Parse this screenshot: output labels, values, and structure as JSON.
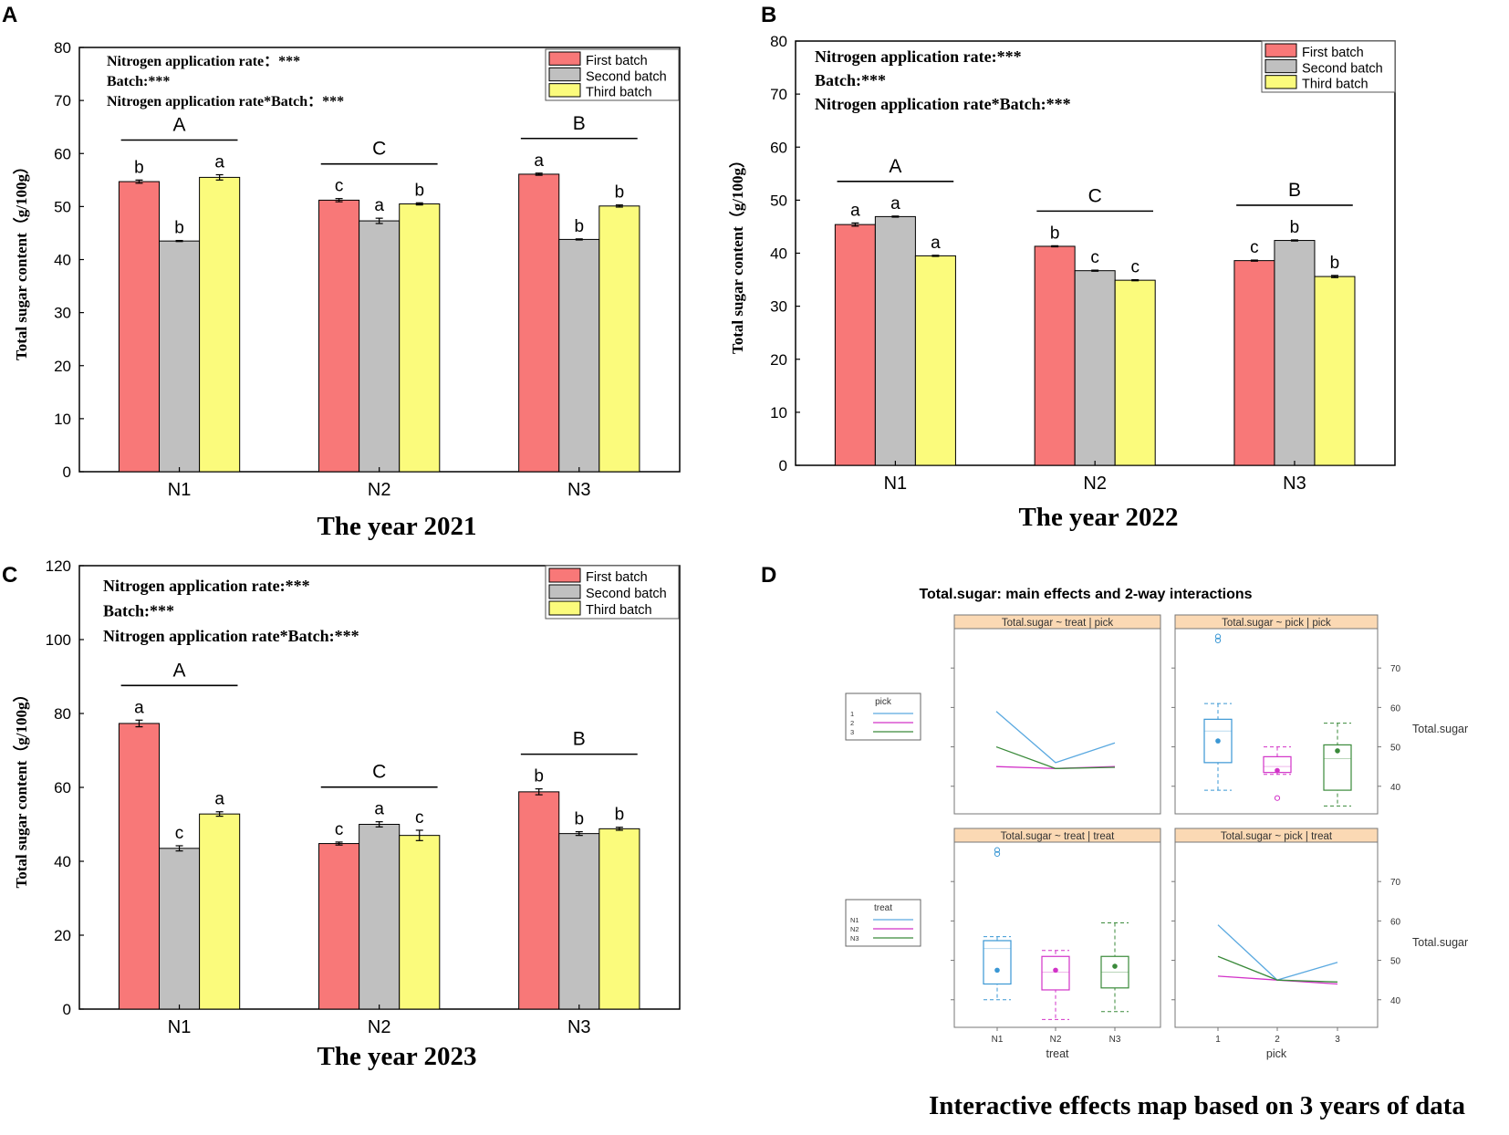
{
  "panels": {
    "A": {
      "letter": "A"
    },
    "B": {
      "letter": "B"
    },
    "C": {
      "letter": "C"
    },
    "D": {
      "letter": "D"
    }
  },
  "chart_data": [
    {
      "id": "A",
      "type": "bar",
      "title": "The year 2021",
      "ylabel": "Total sugar content（g/100g）",
      "xlabel": "",
      "ylim": [
        0,
        80
      ],
      "yticks": [
        0,
        10,
        20,
        30,
        40,
        50,
        60,
        70,
        80
      ],
      "categories": [
        "N1",
        "N2",
        "N3"
      ],
      "series": [
        {
          "name": "First batch",
          "color": "#f87878",
          "values": [
            54.7,
            51.2,
            56.1
          ],
          "errors": [
            0.3,
            0.3,
            0.2
          ],
          "letters": [
            "b",
            "c",
            "a"
          ]
        },
        {
          "name": "Second batch",
          "color": "#c0c0c0",
          "values": [
            43.5,
            47.3,
            43.8
          ],
          "errors": [
            0.1,
            0.5,
            0.1
          ],
          "letters": [
            "b",
            "a",
            "b"
          ]
        },
        {
          "name": "Third batch",
          "color": "#fbfb7c",
          "values": [
            55.5,
            50.5,
            50.1
          ],
          "errors": [
            0.5,
            0.2,
            0.2
          ],
          "letters": [
            "a",
            "b",
            "b"
          ]
        }
      ],
      "group_letters": [
        "A",
        "C",
        "B"
      ],
      "annotations": [
        "Nitrogen application rate：***",
        "Batch:***",
        "Nitrogen application rate*Batch：***"
      ],
      "legend_position": "top-right"
    },
    {
      "id": "B",
      "type": "bar",
      "title": "The year 2022",
      "ylabel": "Total sugar content（g/100g）",
      "xlabel": "",
      "ylim": [
        0,
        80
      ],
      "yticks": [
        0,
        10,
        20,
        30,
        40,
        50,
        60,
        70,
        80
      ],
      "categories": [
        "N1",
        "N2",
        "N3"
      ],
      "series": [
        {
          "name": "First batch",
          "color": "#f87878",
          "values": [
            45.4,
            41.3,
            38.6
          ],
          "errors": [
            0.3,
            0.1,
            0.1
          ],
          "letters": [
            "a",
            "b",
            "c"
          ]
        },
        {
          "name": "Second batch",
          "color": "#c0c0c0",
          "values": [
            46.9,
            36.7,
            42.4
          ],
          "errors": [
            0.1,
            0.1,
            0.1
          ],
          "letters": [
            "a",
            "c",
            "b"
          ]
        },
        {
          "name": "Third batch",
          "color": "#fbfb7c",
          "values": [
            39.5,
            34.9,
            35.6
          ],
          "errors": [
            0.1,
            0.1,
            0.2
          ],
          "letters": [
            "a",
            "c",
            "b"
          ]
        }
      ],
      "group_letters": [
        "A",
        "C",
        "B"
      ],
      "annotations": [
        "Nitrogen application rate:***",
        "Batch:***",
        "Nitrogen application rate*Batch:***"
      ],
      "legend_position": "top-right"
    },
    {
      "id": "C",
      "type": "bar",
      "title": "The year 2023",
      "ylabel": "Total sugar content（g/100g）",
      "xlabel": "",
      "ylim": [
        0,
        120
      ],
      "yticks": [
        0,
        20,
        40,
        60,
        80,
        100,
        120
      ],
      "categories": [
        "N1",
        "N2",
        "N3"
      ],
      "series": [
        {
          "name": "First batch",
          "color": "#f87878",
          "values": [
            77.3,
            44.8,
            58.8
          ],
          "errors": [
            0.9,
            0.4,
            0.8
          ],
          "letters": [
            "a",
            "c",
            "b"
          ]
        },
        {
          "name": "Second batch",
          "color": "#c0c0c0",
          "values": [
            43.5,
            50.0,
            47.5
          ],
          "errors": [
            0.7,
            0.7,
            0.5
          ],
          "letters": [
            "c",
            "a",
            "b"
          ]
        },
        {
          "name": "Third batch",
          "color": "#fbfb7c",
          "values": [
            52.8,
            47.0,
            48.8
          ],
          "errors": [
            0.6,
            1.4,
            0.4
          ],
          "letters": [
            "a",
            "c",
            "b"
          ]
        }
      ],
      "group_letters": [
        "A",
        "C",
        "B"
      ],
      "annotations": [
        "Nitrogen application rate:***",
        "Batch:***",
        "Nitrogen application rate*Batch:***"
      ],
      "legend_position": "top-right"
    },
    {
      "id": "D",
      "type": "interaction",
      "title": "Total.sugar: main effects and 2-way interactions",
      "caption": "Interactive effects map based on 3 years of data",
      "right_axis_label": "Total.sugar",
      "right_ticks": [
        40,
        50,
        60,
        70
      ],
      "ylim": [
        33,
        80
      ],
      "subpanels": [
        {
          "strip": "Total.sugar ~ treat | pick",
          "kind": "lines",
          "legend": {
            "title": "pick",
            "entries": [
              "1",
              "2",
              "3"
            ]
          },
          "lines": [
            {
              "name": "1",
              "color": "#5aa9e0",
              "values": [
                59,
                46,
                51
              ]
            },
            {
              "name": "2",
              "color": "#d233c8",
              "values": [
                45,
                44.5,
                45
              ]
            },
            {
              "name": "3",
              "color": "#3a8a3a",
              "values": [
                50,
                44.5,
                44.8
              ]
            }
          ]
        },
        {
          "strip": "Total.sugar ~ pick | pick",
          "kind": "box",
          "xlabel": "pick",
          "categories": [
            "1",
            "2",
            "3"
          ],
          "boxes": [
            {
              "color": "#3a97d4",
              "low": 39,
              "q1": 46,
              "median": 54,
              "q3": 57,
              "high": 61,
              "mean": 51.5,
              "outliers": [
                77,
                78
              ]
            },
            {
              "color": "#d233c8",
              "low": 43,
              "q1": 43.5,
              "median": 45,
              "q3": 47.5,
              "high": 50,
              "mean": 44,
              "outliers": [
                37
              ]
            },
            {
              "color": "#3a8a3a",
              "low": 35,
              "q1": 39,
              "median": 47,
              "q3": 50.5,
              "high": 56,
              "mean": 49,
              "outliers": []
            }
          ]
        },
        {
          "strip": "Total.sugar ~ treat | treat",
          "kind": "box",
          "xlabel": "treat",
          "categories": [
            "N1",
            "N2",
            "N3"
          ],
          "legend": {
            "title": "treat",
            "entries": [
              "N1",
              "N2",
              "N3"
            ]
          },
          "boxes": [
            {
              "color": "#3a97d4",
              "low": 40,
              "q1": 44,
              "median": 53,
              "q3": 55,
              "high": 56,
              "mean": 47.5,
              "outliers": [
                77,
                78
              ]
            },
            {
              "color": "#d233c8",
              "low": 35,
              "q1": 42.5,
              "median": 47,
              "q3": 51,
              "high": 52.5,
              "mean": 47.5,
              "outliers": []
            },
            {
              "color": "#3a8a3a",
              "low": 37,
              "q1": 43,
              "median": 47,
              "q3": 51,
              "high": 59.5,
              "mean": 48.5,
              "outliers": []
            }
          ]
        },
        {
          "strip": "Total.sugar ~ pick | treat",
          "kind": "lines",
          "xlabel": "pick",
          "categories": [
            "1",
            "2",
            "3"
          ],
          "lines": [
            {
              "name": "N1",
              "color": "#5aa9e0",
              "values": [
                59,
                45,
                49.5
              ]
            },
            {
              "name": "N2",
              "color": "#d233c8",
              "values": [
                46,
                45,
                44
              ]
            },
            {
              "name": "N3",
              "color": "#3a8a3a",
              "values": [
                51,
                45,
                44.5
              ]
            }
          ]
        }
      ]
    }
  ]
}
